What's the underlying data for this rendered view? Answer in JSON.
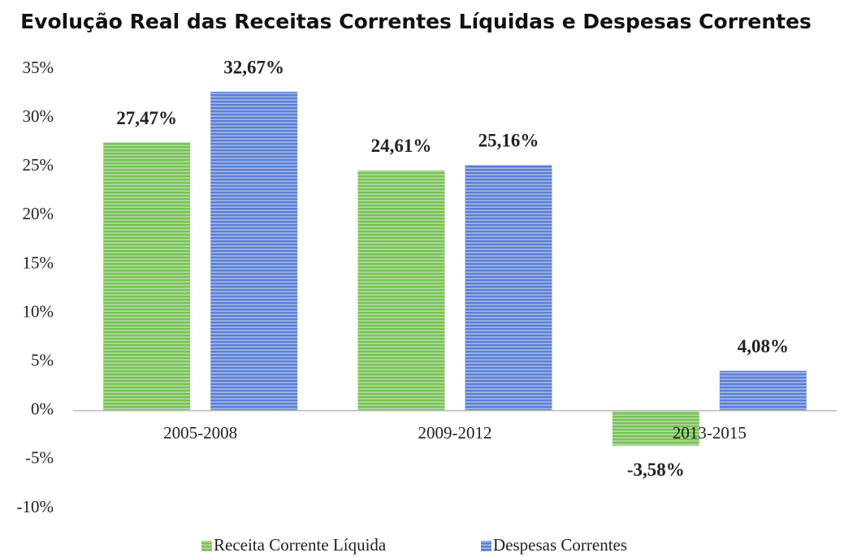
{
  "chart_data": {
    "type": "bar",
    "title": "Evolução Real das Receitas Correntes Líquidas e Despesas Correntes",
    "categories": [
      "2005-2008",
      "2009-2012",
      "2013-2015"
    ],
    "series": [
      {
        "name": "Receita Corrente Líquida",
        "color": "#77c155",
        "values": [
          27.47,
          24.61,
          -3.58
        ],
        "value_labels": [
          "27,47%",
          "24,61%",
          "-3,58%"
        ]
      },
      {
        "name": "Despesas Correntes",
        "color": "#5a7fd3",
        "values": [
          32.67,
          25.16,
          4.08
        ],
        "value_labels": [
          "32,67%",
          "25,16%",
          "4,08%"
        ]
      }
    ],
    "ylim": [
      -10,
      35
    ],
    "yticks": [
      {
        "value": -10,
        "label": "-10%"
      },
      {
        "value": -5,
        "label": "-5%"
      },
      {
        "value": 0,
        "label": "0%"
      },
      {
        "value": 5,
        "label": "5%"
      },
      {
        "value": 10,
        "label": "10%"
      },
      {
        "value": 15,
        "label": "15%"
      },
      {
        "value": 20,
        "label": "20%"
      },
      {
        "value": 25,
        "label": "25%"
      },
      {
        "value": 30,
        "label": "30%"
      },
      {
        "value": 35,
        "label": "35%"
      }
    ],
    "grid": false,
    "legend": "bottom"
  }
}
